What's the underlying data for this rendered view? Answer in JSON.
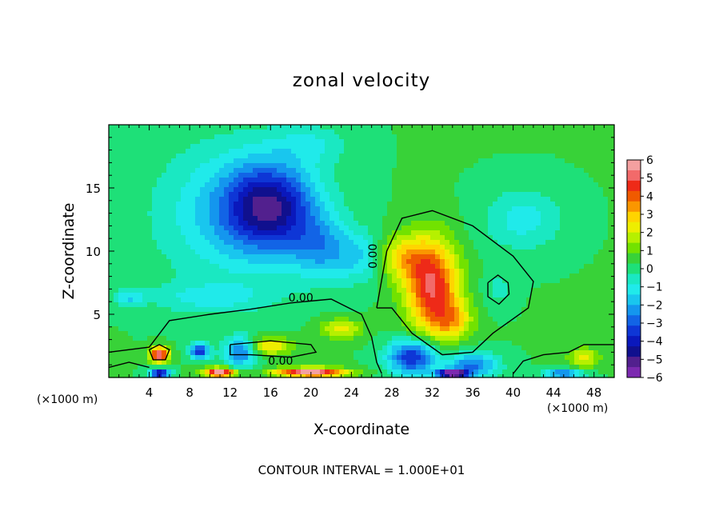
{
  "chart_data": {
    "type": "heatmap",
    "title": "zonal velocity",
    "xlabel": "X-coordinate",
    "ylabel": "Z-coordinate",
    "x_unit_label": "(×1000 m)",
    "xlim": [
      0,
      50
    ],
    "ylim": [
      0,
      20
    ],
    "x_ticks": [
      4,
      8,
      12,
      16,
      20,
      24,
      28,
      32,
      36,
      40,
      44,
      48
    ],
    "y_ticks": [
      5,
      10,
      15
    ],
    "colorbar": {
      "ticks": [
        "6",
        "5",
        "4",
        "3",
        "2",
        "1",
        "0",
        "−1",
        "−2",
        "−3",
        "−4",
        "−5",
        "−6"
      ],
      "colors": [
        "#f4a0a0",
        "#f26a6a",
        "#ee2a18",
        "#f05a00",
        "#fa9600",
        "#ffd400",
        "#eeee00",
        "#b6f000",
        "#72e200",
        "#38d238",
        "#1ee078",
        "#1ae8c2",
        "#20eaea",
        "#19c6ee",
        "#1496ee",
        "#1264e6",
        "#0e36d6",
        "#0a18bc",
        "#10108e",
        "#52208e",
        "#7c2ab0"
      ]
    },
    "contour_labels": [
      "0.00",
      "0.00",
      "0.00"
    ],
    "contour_interval_text": "CONTOUR INTERVAL = 1.000E+01",
    "background_value": 0.3,
    "features": [
      {
        "x": 16,
        "z": 13.5,
        "value": -4.2,
        "sx": 4.5,
        "sz": 3.4
      },
      {
        "x": 12,
        "z": 13.0,
        "value": -1.8,
        "sx": 7.5,
        "sz": 5.5
      },
      {
        "x": 21,
        "z": 10.2,
        "value": -2.0,
        "sx": 3.0,
        "sz": 2.5
      },
      {
        "x": 25,
        "z": 9.5,
        "value": -1.5,
        "sx": 2.5,
        "sz": 2.0
      },
      {
        "x": 10,
        "z": 6.3,
        "value": -1.2,
        "sx": 6.0,
        "sz": 1.2
      },
      {
        "x": 2,
        "z": 6.3,
        "value": -1.6,
        "sx": 1.5,
        "sz": 0.6
      },
      {
        "x": 13,
        "z": 2.0,
        "value": -3.0,
        "sx": 1.6,
        "sz": 1.2
      },
      {
        "x": 32,
        "z": 7.2,
        "value": 4.6,
        "sx": 2.6,
        "sz": 3.6
      },
      {
        "x": 29,
        "z": 9.5,
        "value": 2.2,
        "sx": 2.5,
        "sz": 1.8
      },
      {
        "x": 34,
        "z": 4.5,
        "value": 2.0,
        "sx": 2.0,
        "sz": 1.5
      },
      {
        "x": 30,
        "z": 1.6,
        "value": -4.2,
        "sx": 2.4,
        "sz": 1.4
      },
      {
        "x": 36,
        "z": 1.0,
        "value": -3.0,
        "sx": 2.5,
        "sz": 1.0
      },
      {
        "x": 38.5,
        "z": 7.0,
        "value": -0.8,
        "sx": 1.5,
        "sz": 1.5
      },
      {
        "x": 41,
        "z": 12.5,
        "value": -1.4,
        "sx": 4.0,
        "sz": 2.5
      },
      {
        "x": 20,
        "z": 18.5,
        "value": -1.0,
        "sx": 4.0,
        "sz": 1.5
      },
      {
        "x": 5,
        "z": 1.8,
        "value": 5.5,
        "sx": 0.9,
        "sz": 0.6
      },
      {
        "x": 5,
        "z": 0.3,
        "value": -5.0,
        "sx": 1.0,
        "sz": 0.4
      },
      {
        "x": 9,
        "z": 2.1,
        "value": -4.0,
        "sx": 1.0,
        "sz": 0.6
      },
      {
        "x": 11,
        "z": 0.4,
        "value": 5.8,
        "sx": 1.5,
        "sz": 0.35
      },
      {
        "x": 20,
        "z": 0.4,
        "value": 5.5,
        "sx": 3.5,
        "sz": 0.35
      },
      {
        "x": 16,
        "z": 2.5,
        "value": 2.5,
        "sx": 2.0,
        "sz": 0.7
      },
      {
        "x": 23,
        "z": 3.8,
        "value": 2.0,
        "sx": 2.0,
        "sz": 0.8
      },
      {
        "x": 47,
        "z": 1.5,
        "value": 2.0,
        "sx": 1.5,
        "sz": 0.8
      },
      {
        "x": 45,
        "z": 0.3,
        "value": -3.0,
        "sx": 2.0,
        "sz": 0.4
      },
      {
        "x": 34,
        "z": 0.3,
        "value": -6.5,
        "sx": 1.5,
        "sz": 0.35
      }
    ],
    "grid": false,
    "legend_position": "right"
  }
}
